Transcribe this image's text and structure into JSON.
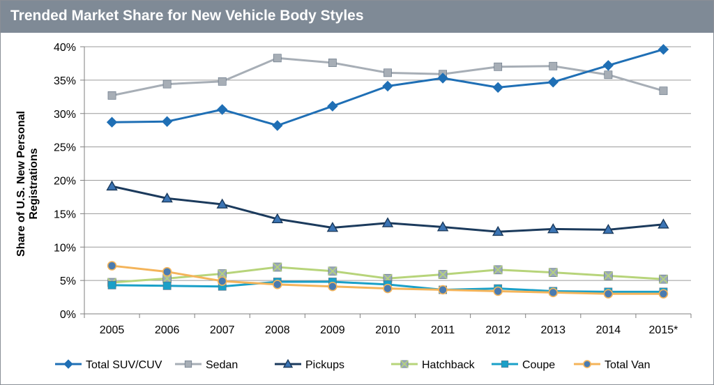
{
  "chart_data": {
    "type": "line",
    "title": "Trended Market Share for New Vehicle Body Styles",
    "ylabel_lines": [
      "Share of U.S. New Personal",
      "Registrations"
    ],
    "xlabel": "",
    "categories": [
      "2005",
      "2006",
      "2007",
      "2008",
      "2009",
      "2010",
      "2011",
      "2012",
      "2013",
      "2014",
      "2015*"
    ],
    "ylim": [
      0,
      40
    ],
    "yticks": [
      0,
      5,
      10,
      15,
      20,
      25,
      30,
      35,
      40
    ],
    "ytick_labels": [
      "0%",
      "5%",
      "10%",
      "15%",
      "20%",
      "25%",
      "30%",
      "35%",
      "40%"
    ],
    "grid": "horizontal",
    "legend_position": "bottom",
    "series": [
      {
        "name": "Total SUV/CUV",
        "color": "#1f6fb5",
        "marker": "diamond",
        "values": [
          28.7,
          28.8,
          30.6,
          28.2,
          31.1,
          34.1,
          35.3,
          33.9,
          34.7,
          37.2,
          39.6
        ]
      },
      {
        "name": "Sedan",
        "color": "#a7aeb6",
        "marker": "square",
        "values": [
          32.7,
          34.4,
          34.8,
          38.3,
          37.6,
          36.1,
          35.9,
          37.0,
          37.1,
          35.8,
          33.4
        ]
      },
      {
        "name": "Pickups",
        "color": "#1b3a5c",
        "marker": "triangle",
        "values": [
          19.1,
          17.3,
          16.4,
          14.2,
          12.9,
          13.6,
          13.0,
          12.3,
          12.7,
          12.6,
          13.4
        ]
      },
      {
        "name": "Hatchback",
        "color": "#b7d47a",
        "marker": "xsquare",
        "values": [
          4.7,
          5.3,
          6.0,
          7.0,
          6.4,
          5.3,
          5.9,
          6.6,
          6.2,
          5.7,
          5.2
        ]
      },
      {
        "name": "Coupe",
        "color": "#1aa0c8",
        "marker": "square",
        "values": [
          4.3,
          4.2,
          4.1,
          4.8,
          4.8,
          4.4,
          3.6,
          3.8,
          3.4,
          3.3,
          3.3
        ]
      },
      {
        "name": "Total Van",
        "color": "#f4b45a",
        "marker": "circle",
        "values": [
          7.2,
          6.3,
          4.9,
          4.4,
          4.1,
          3.8,
          3.6,
          3.4,
          3.2,
          3.0,
          3.0
        ]
      }
    ]
  }
}
